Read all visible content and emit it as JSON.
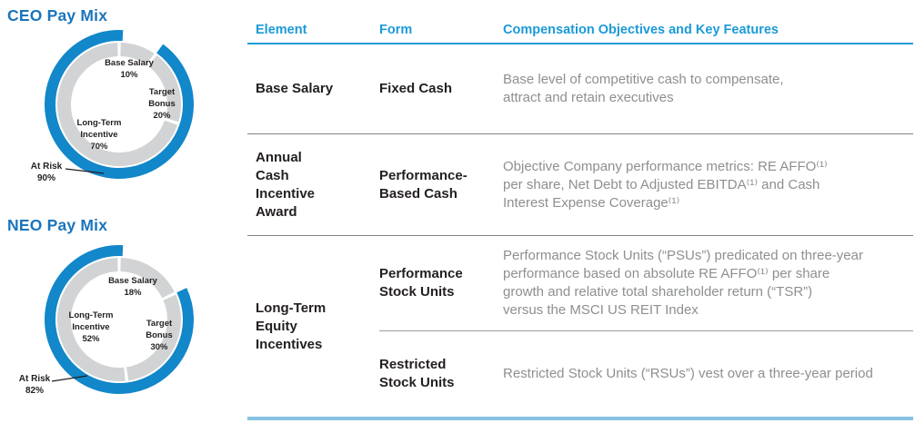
{
  "colors": {
    "title_blue": "#1B75BC",
    "header_blue": "#1C9AD7",
    "donut_blue": "#1287C9",
    "donut_gray": "#D1D3D4",
    "light_blue_rule": "#85C2E4",
    "text_black": "#231F20",
    "text_gray": "#8D8F91"
  },
  "chart_data": [
    {
      "id": "ceo",
      "type": "donut",
      "title": "CEO Pay Mix",
      "segments": [
        {
          "label": "Base Salary",
          "pct": 10,
          "at_risk": false
        },
        {
          "label": "Target Bonus",
          "pct": 20,
          "at_risk": true
        },
        {
          "label": "Long-Term Incentive",
          "pct": 70,
          "at_risk": true
        }
      ],
      "at_risk": {
        "label": "At Risk",
        "pct": 90
      },
      "labels": {
        "base_salary": "Base Salary\n10%",
        "target_bonus": "Target\nBonus\n20%",
        "long_term_incentive": "Long-Term\nIncentive\n70%",
        "at_risk": "At Risk\n90%"
      }
    },
    {
      "id": "neo",
      "type": "donut",
      "title": "NEO Pay Mix",
      "segments": [
        {
          "label": "Base Salary",
          "pct": 18,
          "at_risk": false
        },
        {
          "label": "Target Bonus",
          "pct": 30,
          "at_risk": true
        },
        {
          "label": "Long-Term Incentive",
          "pct": 52,
          "at_risk": true
        }
      ],
      "at_risk": {
        "label": "At Risk",
        "pct": 82
      },
      "labels": {
        "base_salary": "Base Salary\n18%",
        "target_bonus": "Target\nBonus\n30%",
        "long_term_incentive": "Long-Term\nIncentive\n52%",
        "at_risk": "At Risk\n82%"
      }
    }
  ],
  "table": {
    "headers": [
      "Element",
      "Form",
      "Compensation Objectives and Key Features"
    ],
    "rows": [
      {
        "element": "Base Salary",
        "form": "Fixed Cash",
        "description": "Base level of competitive cash to compensate,\nattract and retain executives"
      },
      {
        "element": "Annual\nCash\nIncentive\nAward",
        "form": "Performance-\nBased Cash",
        "description": "Objective Company performance metrics: RE AFFO⁽¹⁾\nper share, Net Debt to Adjusted EBITDA⁽¹⁾ and Cash\nInterest Expense Coverage⁽¹⁾"
      },
      {
        "element": "Long-Term\nEquity\nIncentives",
        "sub_rows": [
          {
            "form": "Performance\nStock Units",
            "description": "Performance Stock Units (“PSUs”) predicated on three-year\nperformance based on absolute RE AFFO⁽¹⁾ per share\ngrowth and relative total shareholder return (“TSR”)\nversus the MSCI US REIT Index"
          },
          {
            "form": "Restricted\nStock Units",
            "description": "Restricted Stock Units (“RSUs”) vest over a three-year period"
          }
        ]
      }
    ]
  }
}
